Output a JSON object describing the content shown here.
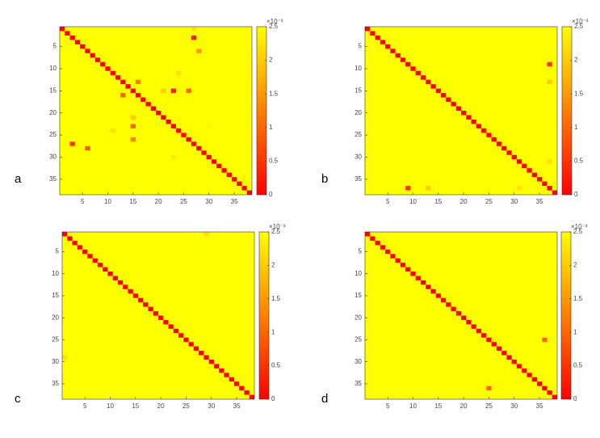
{
  "chart_data": [
    {
      "type": "heatmap",
      "label": "a",
      "size": 38,
      "xlim": [
        0.5,
        38.5
      ],
      "ylim": [
        0.5,
        38.5
      ],
      "xticks": [
        5,
        10,
        15,
        20,
        25,
        30,
        35
      ],
      "yticks": [
        5,
        10,
        15,
        20,
        25,
        30,
        35
      ],
      "clim": [
        0,
        2.5
      ],
      "cticks": [
        0,
        0.5,
        1,
        1.5,
        2,
        2.5
      ],
      "cscale": "×10⁻³",
      "colormap": [
        "#ff0000",
        "#ffff00"
      ],
      "fill_value": 2.5,
      "diagonal_value": 0,
      "cells": [
        {
          "row": 1,
          "col": 27,
          "value": 2.2
        },
        {
          "row": 3,
          "col": 27,
          "value": 0.3
        },
        {
          "row": 6,
          "col": 28,
          "value": 1.5
        },
        {
          "row": 11,
          "col": 24,
          "value": 2.2
        },
        {
          "row": 13,
          "col": 16,
          "value": 1.2
        },
        {
          "row": 15,
          "col": 21,
          "value": 2.0
        },
        {
          "row": 15,
          "col": 23,
          "value": 0.3
        },
        {
          "row": 15,
          "col": 26,
          "value": 1.0
        },
        {
          "row": 16,
          "col": 13,
          "value": 1.0
        },
        {
          "row": 21,
          "col": 15,
          "value": 2.0
        },
        {
          "row": 23,
          "col": 15,
          "value": 1.0
        },
        {
          "row": 24,
          "col": 11,
          "value": 2.2
        },
        {
          "row": 26,
          "col": 15,
          "value": 1.3
        },
        {
          "row": 27,
          "col": 3,
          "value": 0.5
        },
        {
          "row": 28,
          "col": 6,
          "value": 0.9
        },
        {
          "row": 30,
          "col": 23,
          "value": 2.3
        },
        {
          "row": 23,
          "col": 30,
          "value": 2.4
        }
      ]
    },
    {
      "type": "heatmap",
      "label": "b",
      "size": 38,
      "xlim": [
        0.5,
        38.5
      ],
      "ylim": [
        0.5,
        38.5
      ],
      "xticks": [
        5,
        10,
        15,
        20,
        25,
        30,
        35
      ],
      "yticks": [
        5,
        10,
        15,
        20,
        25,
        30,
        35
      ],
      "clim": [
        0,
        2.5
      ],
      "cticks": [
        0,
        0.5,
        1,
        1.5,
        2,
        2.5
      ],
      "cscale": "×10⁻³",
      "colormap": [
        "#ff0000",
        "#ffff00"
      ],
      "fill_value": 2.5,
      "diagonal_value": 0,
      "cells": [
        {
          "row": 9,
          "col": 37,
          "value": 0.5
        },
        {
          "row": 13,
          "col": 37,
          "value": 2.0
        },
        {
          "row": 31,
          "col": 37,
          "value": 2.2
        },
        {
          "row": 37,
          "col": 9,
          "value": 0.5
        },
        {
          "row": 37,
          "col": 13,
          "value": 2.0
        },
        {
          "row": 37,
          "col": 31,
          "value": 2.2
        }
      ]
    },
    {
      "type": "heatmap",
      "label": "c",
      "size": 38,
      "xlim": [
        0.5,
        38.5
      ],
      "ylim": [
        0.5,
        38.5
      ],
      "xticks": [
        5,
        10,
        15,
        20,
        25,
        30,
        35
      ],
      "yticks": [
        5,
        10,
        15,
        20,
        25,
        30,
        35
      ],
      "clim": [
        0,
        2.5
      ],
      "cticks": [
        0,
        0.5,
        1,
        1.5,
        2,
        2.5
      ],
      "cscale": "×10⁻³",
      "colormap": [
        "#ff0000",
        "#ffff00"
      ],
      "fill_value": 2.5,
      "diagonal_value": 0,
      "cells": [
        {
          "row": 1,
          "col": 29,
          "value": 2.2
        },
        {
          "row": 29,
          "col": 1,
          "value": 2.2
        }
      ]
    },
    {
      "type": "heatmap",
      "label": "d",
      "size": 38,
      "xlim": [
        0.5,
        38.5
      ],
      "ylim": [
        0.5,
        38.5
      ],
      "xticks": [
        5,
        10,
        15,
        20,
        25,
        30,
        35
      ],
      "yticks": [
        5,
        10,
        15,
        20,
        25,
        30,
        35
      ],
      "clim": [
        0,
        2.5
      ],
      "cticks": [
        0,
        0.5,
        1,
        1.5,
        2,
        2.5
      ],
      "cscale": "×10⁻³",
      "colormap": [
        "#ff0000",
        "#ffff00"
      ],
      "fill_value": 2.5,
      "diagonal_value": 0,
      "cells": [
        {
          "row": 25,
          "col": 36,
          "value": 1.0
        },
        {
          "row": 36,
          "col": 25,
          "value": 1.0
        }
      ]
    }
  ]
}
